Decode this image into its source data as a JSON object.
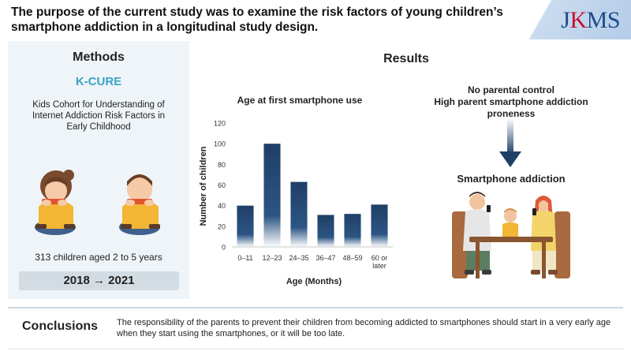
{
  "header": {
    "title": "The purpose of the current study was to examine the risk factors of young children’s smartphone addiction in a longitudinal study design.",
    "logo": "JKMS",
    "logo_part1": "J",
    "logo_part2": "K",
    "logo_part3": "MS"
  },
  "methods": {
    "title": "Methods",
    "cohort_name": "K-CURE",
    "cohort_description": "Kids Cohort for Understanding of Internet Addiction Risk Factors in Early Childhood",
    "participants": "313 children aged 2 to 5 years",
    "years": "2018 → 2021"
  },
  "results": {
    "title": "Results",
    "risk_factors": [
      "No parental control",
      "High parent smartphone addiction proneness"
    ],
    "outcome": "Smartphone addiction"
  },
  "chart_data": {
    "type": "bar",
    "title": "Age at first smartphone use",
    "xlabel": "Age (Months)",
    "ylabel": "Number of children",
    "categories": [
      "0–11",
      "12–23",
      "24–35",
      "36–47",
      "48–59",
      "60 or later"
    ],
    "values": [
      40,
      100,
      63,
      31,
      32,
      41
    ],
    "ylim": [
      0,
      120
    ],
    "yticks": [
      0,
      20,
      40,
      60,
      80,
      100,
      120
    ],
    "bar_color": "#1f3f66"
  },
  "conclusions": {
    "label": "Conclusions",
    "text": "The responsibility of the parents to prevent their children from becoming addicted to smartphones should start in a very early age when they start using the smartphones, or it will be too late."
  },
  "colors": {
    "accent": "#3aa3c8",
    "panel": "#eef4f8",
    "logo_blue": "#1e4a8a",
    "logo_red": "#c8102e"
  }
}
